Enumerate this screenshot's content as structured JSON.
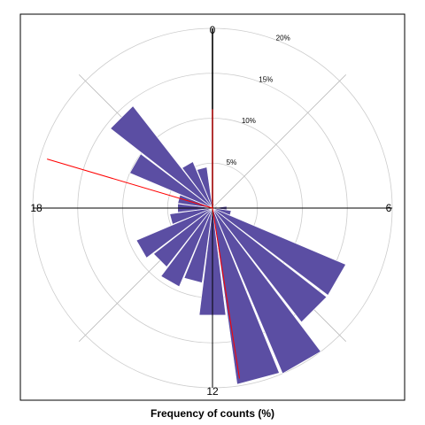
{
  "chart_data": {
    "type": "polar-bar",
    "xlabel": "Frequency of counts (%)",
    "rmax": 20,
    "ring_values": [
      5,
      10,
      15,
      20
    ],
    "ring_labels": [
      "5%",
      "10%",
      "15%",
      "20%"
    ],
    "direction_labels": [
      {
        "hour": 0,
        "text": "0"
      },
      {
        "hour": 6,
        "text": "6"
      },
      {
        "hour": 12,
        "text": "12"
      },
      {
        "hour": 18,
        "text": "18"
      }
    ],
    "bar_color": "#5b4ea3",
    "categories": [
      "0",
      "1",
      "2",
      "3",
      "4",
      "5",
      "6",
      "7",
      "8",
      "9",
      "10",
      "11",
      "12",
      "13",
      "14",
      "15",
      "16",
      "17",
      "18",
      "19",
      "20",
      "21",
      "22",
      "23"
    ],
    "values": [
      0.9,
      0.5,
      0.2,
      0.2,
      0.4,
      0.5,
      1.6,
      2.1,
      16.1,
      16.1,
      20.0,
      19.8,
      12.0,
      8.4,
      9.5,
      8.3,
      9.2,
      4.8,
      3.9,
      3.9,
      10.0,
      14.4,
      5.6,
      4.6
    ],
    "reference_lines": [
      {
        "hour": 0,
        "value": 20,
        "color": "#000000"
      },
      {
        "hour": 0,
        "value": 11,
        "color": "#ff0000"
      },
      {
        "hour": 11.4,
        "value": 19.2,
        "color": "#ff0000"
      },
      {
        "hour": 19.1,
        "value": 19.2,
        "color": "#ff0000"
      }
    ],
    "axis_line_color": "#000000",
    "grid_color": "#cccccc",
    "spoke_color": "#bbbbbb"
  }
}
